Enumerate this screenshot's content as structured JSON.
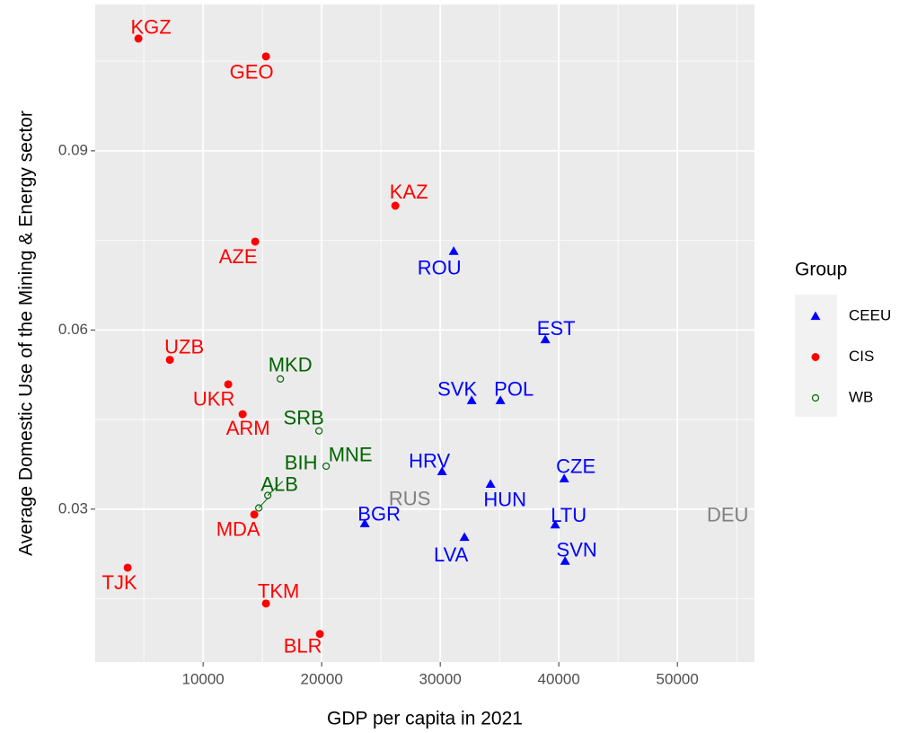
{
  "chart_data": {
    "type": "scatter",
    "x_label": "GDP per capita in 2021",
    "y_label": "Average Domestic Use of the Mining & Energy sector",
    "xlim": [
      900,
      56500
    ],
    "ylim": [
      0.0044,
      0.1145
    ],
    "xticks": [
      10000,
      20000,
      30000,
      40000,
      50000
    ],
    "yticks": [
      0.03,
      0.06,
      0.09
    ],
    "grid": true,
    "legend_title": "Group",
    "legend_position": "right",
    "series": [
      {
        "name": "CEEU",
        "color": "#0000ff",
        "marker": "triangle",
        "labels": [
          "ROU",
          "EST",
          "SVK",
          "POL",
          "HRV",
          "CZE",
          "HUN",
          "BGR",
          "LTU",
          "LVA",
          "SVN"
        ],
        "x": [
          31136,
          38864,
          32652,
          35076,
          30152,
          40455,
          34242,
          23636,
          39697,
          32045,
          40530
        ],
        "values": [
          0.0732,
          0.0584,
          0.0482,
          0.0482,
          0.0363,
          0.0351,
          0.0342,
          0.0276,
          0.0274,
          0.0253,
          0.0213
        ]
      },
      {
        "name": "CIS",
        "color": "#ff0000",
        "marker": "circle",
        "labels": [
          "KGZ",
          "GEO",
          "KAZ",
          "AZE",
          "UZB",
          "UKR",
          "ARM",
          "MDA",
          "TJK",
          "TKM",
          "BLR"
        ],
        "x": [
          4545,
          15303,
          26212,
          14394,
          7197,
          12121,
          13333,
          14318,
          3636,
          15303,
          19848
        ],
        "values": [
          0.1088,
          0.1058,
          0.0808,
          0.0748,
          0.055,
          0.0509,
          0.0459,
          0.0291,
          0.0202,
          0.0142,
          0.0091
        ]
      },
      {
        "name": "WB",
        "color": "#006400",
        "marker": "open-circle",
        "labels": [
          "MKD",
          "SRB",
          "MNE",
          "BIH",
          "ALB"
        ],
        "x": [
          16515,
          19773,
          20379,
          15455,
          14697
        ],
        "values": [
          0.0518,
          0.0431,
          0.0372,
          0.0323,
          0.0302
        ]
      }
    ],
    "annotations": [
      {
        "text": "RUS",
        "x": 27424,
        "y": 0.0315,
        "color": "#808080"
      },
      {
        "text": "DEU",
        "x": 54242,
        "y": 0.0288,
        "color": "#808080"
      }
    ]
  }
}
